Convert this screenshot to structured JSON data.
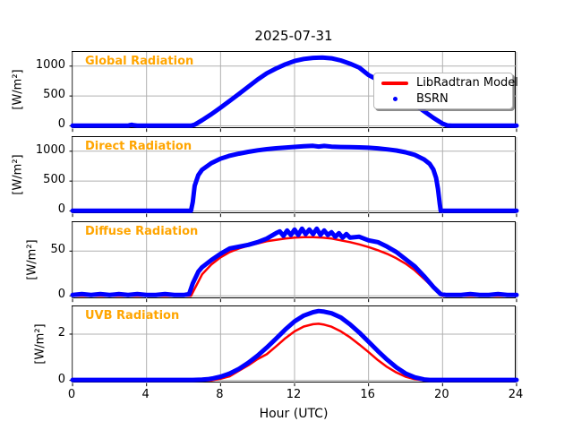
{
  "figure": {
    "title": "2025-07-31"
  },
  "xaxis": {
    "label": "Hour (UTC)",
    "lim": [
      0,
      24
    ],
    "ticks": [
      0,
      4,
      8,
      12,
      16,
      20,
      24
    ]
  },
  "legend": {
    "entries": [
      {
        "label": "LibRadtran Model",
        "color": "#ff0000",
        "marker": "line"
      },
      {
        "label": "BSRN",
        "color": "#0000ff",
        "marker": "dot"
      }
    ]
  },
  "colors": {
    "model": "#ff0000",
    "bsrn": "#0000ff",
    "panel_label": "#ffa500",
    "grid": "#b0b0b0",
    "axes_edge": "#000000"
  },
  "chart_data": [
    {
      "type": "scatter",
      "title": "Global Radiation",
      "ylabel": "[W/m²]",
      "ylim": [
        -48,
        1237
      ],
      "yticks": [
        0,
        500,
        1000
      ],
      "series": [
        {
          "name": "LibRadtran Model",
          "color": "#ff0000",
          "width": 2.5,
          "x": [
            0,
            3,
            3.1,
            3.2,
            3.3,
            3.5,
            6,
            6.4,
            6.6,
            7,
            7.5,
            8,
            8.5,
            9,
            9.5,
            10,
            10.5,
            11,
            11.5,
            12,
            12.5,
            13,
            13.5,
            14,
            14.5,
            15,
            15.5,
            16,
            16.5,
            17,
            17.5,
            18,
            18.5,
            19,
            19.5,
            20,
            20.25,
            20.5,
            24
          ],
          "y": [
            3,
            3,
            3,
            3,
            3,
            3,
            3,
            3,
            20,
            95,
            195,
            305,
            420,
            535,
            655,
            775,
            880,
            960,
            1030,
            1085,
            1120,
            1138,
            1142,
            1130,
            1095,
            1040,
            975,
            850,
            770,
            685,
            580,
            470,
            355,
            245,
            135,
            38,
            8,
            3,
            3
          ]
        },
        {
          "name": "BSRN",
          "color": "#0000ff",
          "width": 5,
          "x": [
            0,
            0.5,
            1,
            1.5,
            2,
            2.5,
            3,
            3.1,
            3.2,
            3.3,
            3.5,
            4,
            4.5,
            5,
            5.5,
            6,
            6.4,
            6.6,
            7,
            7.5,
            8,
            8.5,
            9,
            9.5,
            10,
            10.5,
            11,
            11.5,
            12,
            12.5,
            13,
            13.5,
            14,
            14.5,
            15,
            15.5,
            16,
            16.5,
            17,
            17.5,
            18,
            18.5,
            19,
            19.5,
            20,
            20.25,
            20.5,
            21,
            21.5,
            22,
            22.5,
            23,
            23.5,
            24
          ],
          "y": [
            3,
            3,
            3,
            3,
            3,
            3,
            3,
            12,
            18,
            10,
            3,
            3,
            3,
            3,
            3,
            3,
            3,
            20,
            95,
            195,
            305,
            420,
            535,
            655,
            775,
            880,
            960,
            1030,
            1085,
            1120,
            1138,
            1142,
            1130,
            1095,
            1040,
            975,
            850,
            770,
            685,
            580,
            470,
            355,
            245,
            135,
            38,
            8,
            3,
            3,
            3,
            3,
            3,
            3,
            3,
            3
          ]
        }
      ]
    },
    {
      "type": "scatter",
      "title": "Direct Radiation",
      "ylabel": "[W/m²]",
      "ylim": [
        -48,
        1237
      ],
      "yticks": [
        0,
        500,
        1000
      ],
      "series": [
        {
          "name": "LibRadtran Model",
          "color": "#ff0000",
          "width": 2.5,
          "x": [
            0,
            6,
            6.4,
            6.5,
            6.6,
            6.8,
            7,
            7.5,
            8,
            8.5,
            9,
            9.5,
            10,
            10.5,
            11,
            11.5,
            12,
            12.5,
            13,
            13.3,
            13.6,
            14,
            14.5,
            15,
            15.5,
            16,
            16.5,
            17,
            17.5,
            18,
            18.5,
            19,
            19.3,
            19.5,
            19.65,
            19.75,
            19.85,
            19.9,
            20,
            24
          ],
          "y": [
            3,
            3,
            3,
            150,
            420,
            600,
            690,
            800,
            875,
            925,
            960,
            990,
            1015,
            1035,
            1050,
            1062,
            1072,
            1082,
            1090,
            1078,
            1088,
            1076,
            1070,
            1068,
            1064,
            1058,
            1048,
            1032,
            1012,
            982,
            938,
            862,
            788,
            695,
            555,
            370,
            120,
            3,
            3,
            3
          ]
        },
        {
          "name": "BSRN",
          "color": "#0000ff",
          "width": 5,
          "x": [
            0,
            1,
            2,
            3,
            4,
            5,
            6,
            6.4,
            6.5,
            6.6,
            6.8,
            7,
            7.5,
            8,
            8.5,
            9,
            9.5,
            10,
            10.5,
            11,
            11.5,
            12,
            12.5,
            13,
            13.3,
            13.6,
            14,
            14.5,
            15,
            15.5,
            16,
            16.5,
            17,
            17.5,
            18,
            18.5,
            19,
            19.3,
            19.5,
            19.65,
            19.75,
            19.85,
            19.9,
            20,
            20.5,
            21,
            22,
            23,
            24
          ],
          "y": [
            3,
            3,
            3,
            3,
            3,
            3,
            3,
            3,
            150,
            420,
            600,
            690,
            800,
            875,
            925,
            960,
            990,
            1015,
            1035,
            1050,
            1062,
            1072,
            1082,
            1090,
            1078,
            1088,
            1076,
            1070,
            1068,
            1064,
            1058,
            1048,
            1032,
            1012,
            982,
            938,
            862,
            788,
            695,
            555,
            370,
            120,
            3,
            3,
            3,
            3,
            3,
            3,
            3
          ]
        }
      ]
    },
    {
      "type": "scatter",
      "title": "Diffuse Radiation",
      "ylabel": "[W/m²]",
      "ylim": [
        -3.4,
        82.3
      ],
      "yticks": [
        0,
        50
      ],
      "series": [
        {
          "name": "LibRadtran Model",
          "color": "#ff0000",
          "width": 2.5,
          "x": [
            0,
            6,
            6.4,
            6.6,
            7,
            7.5,
            8,
            8.5,
            9,
            9.5,
            10,
            10.5,
            11,
            11.5,
            12,
            12.5,
            13,
            13.5,
            14,
            14.5,
            15,
            15.5,
            16,
            16.5,
            17,
            17.5,
            18,
            18.5,
            19,
            19.5,
            19.9,
            20,
            24
          ],
          "y": [
            0,
            0,
            0,
            8,
            24,
            35,
            43,
            49,
            53,
            56,
            58.5,
            61,
            62.5,
            64,
            65,
            65.5,
            65.5,
            65,
            64,
            62,
            60,
            57.5,
            54.5,
            51,
            47,
            42,
            36,
            28.5,
            19,
            9,
            1,
            0,
            0
          ]
        },
        {
          "name": "BSRN",
          "color": "#0000ff",
          "width": 5,
          "x": [
            0,
            0.5,
            1,
            1.5,
            2,
            2.5,
            3,
            3.5,
            4,
            4.5,
            5,
            5.5,
            6,
            6.3,
            6.5,
            6.8,
            7,
            7.5,
            8,
            8.5,
            9,
            9.5,
            10,
            10.5,
            11,
            11.2,
            11.4,
            11.6,
            11.8,
            12,
            12.2,
            12.4,
            12.6,
            12.8,
            13,
            13.2,
            13.4,
            13.6,
            13.8,
            14,
            14.2,
            14.4,
            14.6,
            14.8,
            15,
            15.5,
            16,
            16.5,
            17,
            17.5,
            18,
            18.5,
            19,
            19.5,
            19.9,
            20.2,
            20.5,
            21,
            21.5,
            22,
            22.5,
            23,
            23.5,
            24
          ],
          "y": [
            1,
            2,
            1,
            2,
            1,
            2,
            1,
            2,
            1,
            1,
            2,
            1,
            1,
            2,
            14,
            27,
            32,
            40,
            47,
            53,
            55,
            57,
            60,
            64,
            70,
            72,
            67,
            73,
            68,
            74,
            68,
            75,
            69,
            74,
            69,
            75,
            68,
            73,
            68,
            71,
            66,
            70,
            65,
            69,
            65,
            66,
            62,
            60,
            55,
            49,
            41,
            33,
            22,
            10,
            2,
            1,
            1,
            1,
            2,
            1,
            1,
            2,
            1,
            1
          ]
        }
      ]
    },
    {
      "type": "scatter",
      "title": "UVB Radiation",
      "ylabel": "[W/m²]",
      "ylim": [
        -0.12,
        3.2
      ],
      "yticks": [
        0,
        2
      ],
      "series": [
        {
          "name": "LibRadtran Model",
          "color": "#ff0000",
          "width": 2.5,
          "x": [
            0,
            7.5,
            8,
            8.5,
            9,
            9.5,
            10,
            10.5,
            11,
            11.5,
            12,
            12.5,
            13,
            13.3,
            13.6,
            14,
            14.5,
            15,
            15.5,
            16,
            16.5,
            17,
            17.5,
            18,
            18.5,
            19,
            24
          ],
          "y": [
            0,
            0,
            0.07,
            0.18,
            0.42,
            0.65,
            0.92,
            1.13,
            1.47,
            1.82,
            2.12,
            2.33,
            2.43,
            2.45,
            2.41,
            2.32,
            2.12,
            1.86,
            1.55,
            1.22,
            0.88,
            0.58,
            0.34,
            0.16,
            0.05,
            0,
            0
          ]
        },
        {
          "name": "BSRN",
          "color": "#0000ff",
          "width": 5,
          "x": [
            0,
            6.5,
            7,
            7.3,
            7.6,
            8,
            8.5,
            9,
            9.5,
            10,
            10.5,
            11,
            11.5,
            12,
            12.5,
            13,
            13.3,
            13.6,
            14,
            14.5,
            15,
            15.5,
            16,
            16.5,
            17,
            17.5,
            18,
            18.5,
            19,
            19.3,
            19.6,
            20,
            24
          ],
          "y": [
            0.02,
            0.02,
            0.03,
            0.05,
            0.09,
            0.16,
            0.3,
            0.5,
            0.76,
            1.07,
            1.42,
            1.8,
            2.2,
            2.55,
            2.8,
            2.95,
            3.0,
            2.97,
            2.9,
            2.72,
            2.42,
            2.07,
            1.67,
            1.27,
            0.9,
            0.56,
            0.3,
            0.13,
            0.04,
            0.02,
            0.02,
            0.02,
            0.02
          ]
        }
      ]
    }
  ]
}
